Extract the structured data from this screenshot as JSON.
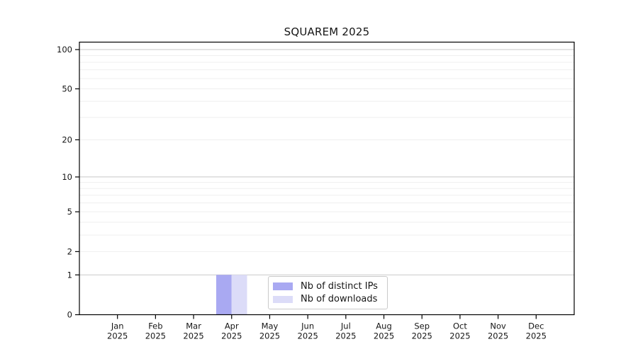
{
  "figure": {
    "background_color": "#ffffff",
    "text_color": "#161616",
    "axis_color": "#000000"
  },
  "chart_data": {
    "type": "bar",
    "title": "SQUAREM 2025",
    "year_label": "2025",
    "months": [
      "Jan",
      "Feb",
      "Mar",
      "Apr",
      "May",
      "Jun",
      "Jul",
      "Aug",
      "Sep",
      "Oct",
      "Nov",
      "Dec"
    ],
    "series": [
      {
        "name": "Nb of distinct IPs",
        "color": "#a9a9f2",
        "values": [
          0,
          0,
          0,
          1,
          0,
          0,
          0,
          0,
          0,
          0,
          0,
          0
        ]
      },
      {
        "name": "Nb of downloads",
        "color": "#dcdcf8",
        "values": [
          0,
          0,
          0,
          1,
          0,
          0,
          0,
          0,
          0,
          0,
          0,
          0
        ]
      }
    ],
    "y_scale": "log10(1+v)",
    "ylim": [
      0,
      114
    ],
    "y_ticks": [
      0,
      1,
      2,
      5,
      10,
      20,
      50,
      100
    ],
    "grid_minor_values": [
      2,
      3,
      4,
      5,
      6,
      7,
      8,
      9,
      20,
      30,
      40,
      50,
      60,
      70,
      80,
      90
    ],
    "grid_major_values": [
      1,
      10,
      100
    ],
    "grid_minor_color": "#efefef",
    "grid_major_color": "#c8c8c8",
    "legend_position": "lower center",
    "grid": "on"
  }
}
